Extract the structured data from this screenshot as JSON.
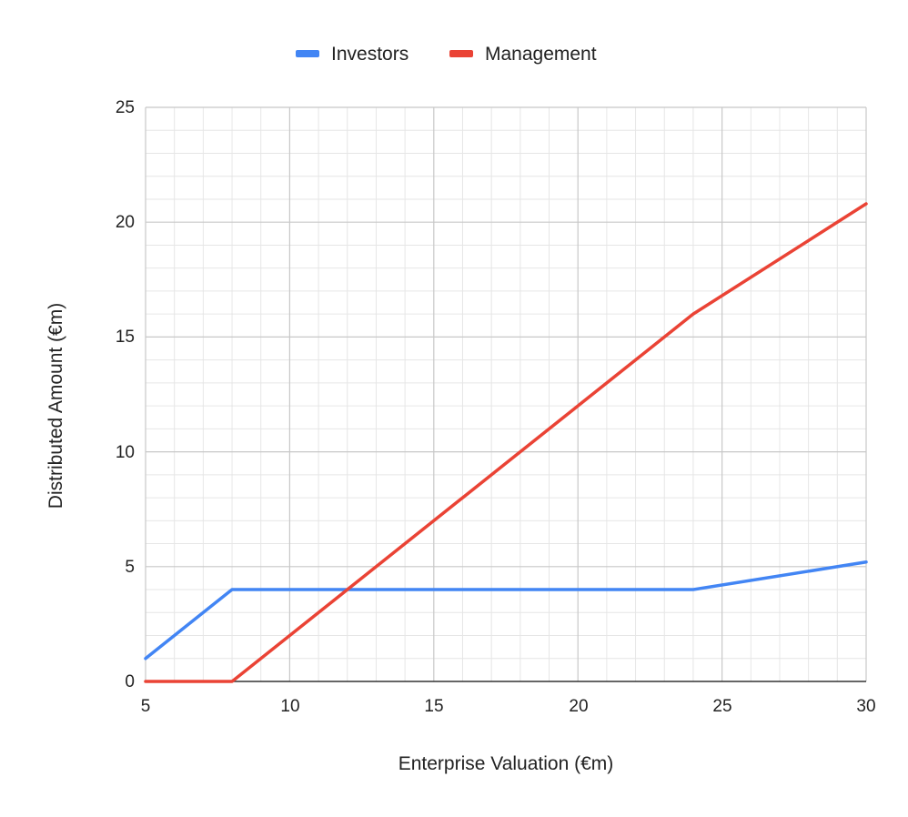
{
  "chart_data": {
    "type": "line",
    "title": "",
    "xlabel": "Enterprise Valuation (€m)",
    "ylabel": "Distributed Amount (€m)",
    "xlim": [
      5,
      30
    ],
    "ylim": [
      0,
      25
    ],
    "x_ticks": [
      "5",
      "10",
      "15",
      "20",
      "25",
      "30"
    ],
    "y_ticks": [
      "0",
      "5",
      "10",
      "15",
      "20",
      "25"
    ],
    "grid": true,
    "legend_position": "top",
    "series": [
      {
        "name": "Investors",
        "color": "#4285f4",
        "points": [
          [
            5,
            1
          ],
          [
            8,
            4
          ],
          [
            24,
            4
          ],
          [
            30,
            5.2
          ]
        ]
      },
      {
        "name": "Management",
        "color": "#ea4335",
        "points": [
          [
            5,
            0
          ],
          [
            8,
            0
          ],
          [
            24,
            16
          ],
          [
            30,
            20.8
          ]
        ]
      }
    ]
  }
}
